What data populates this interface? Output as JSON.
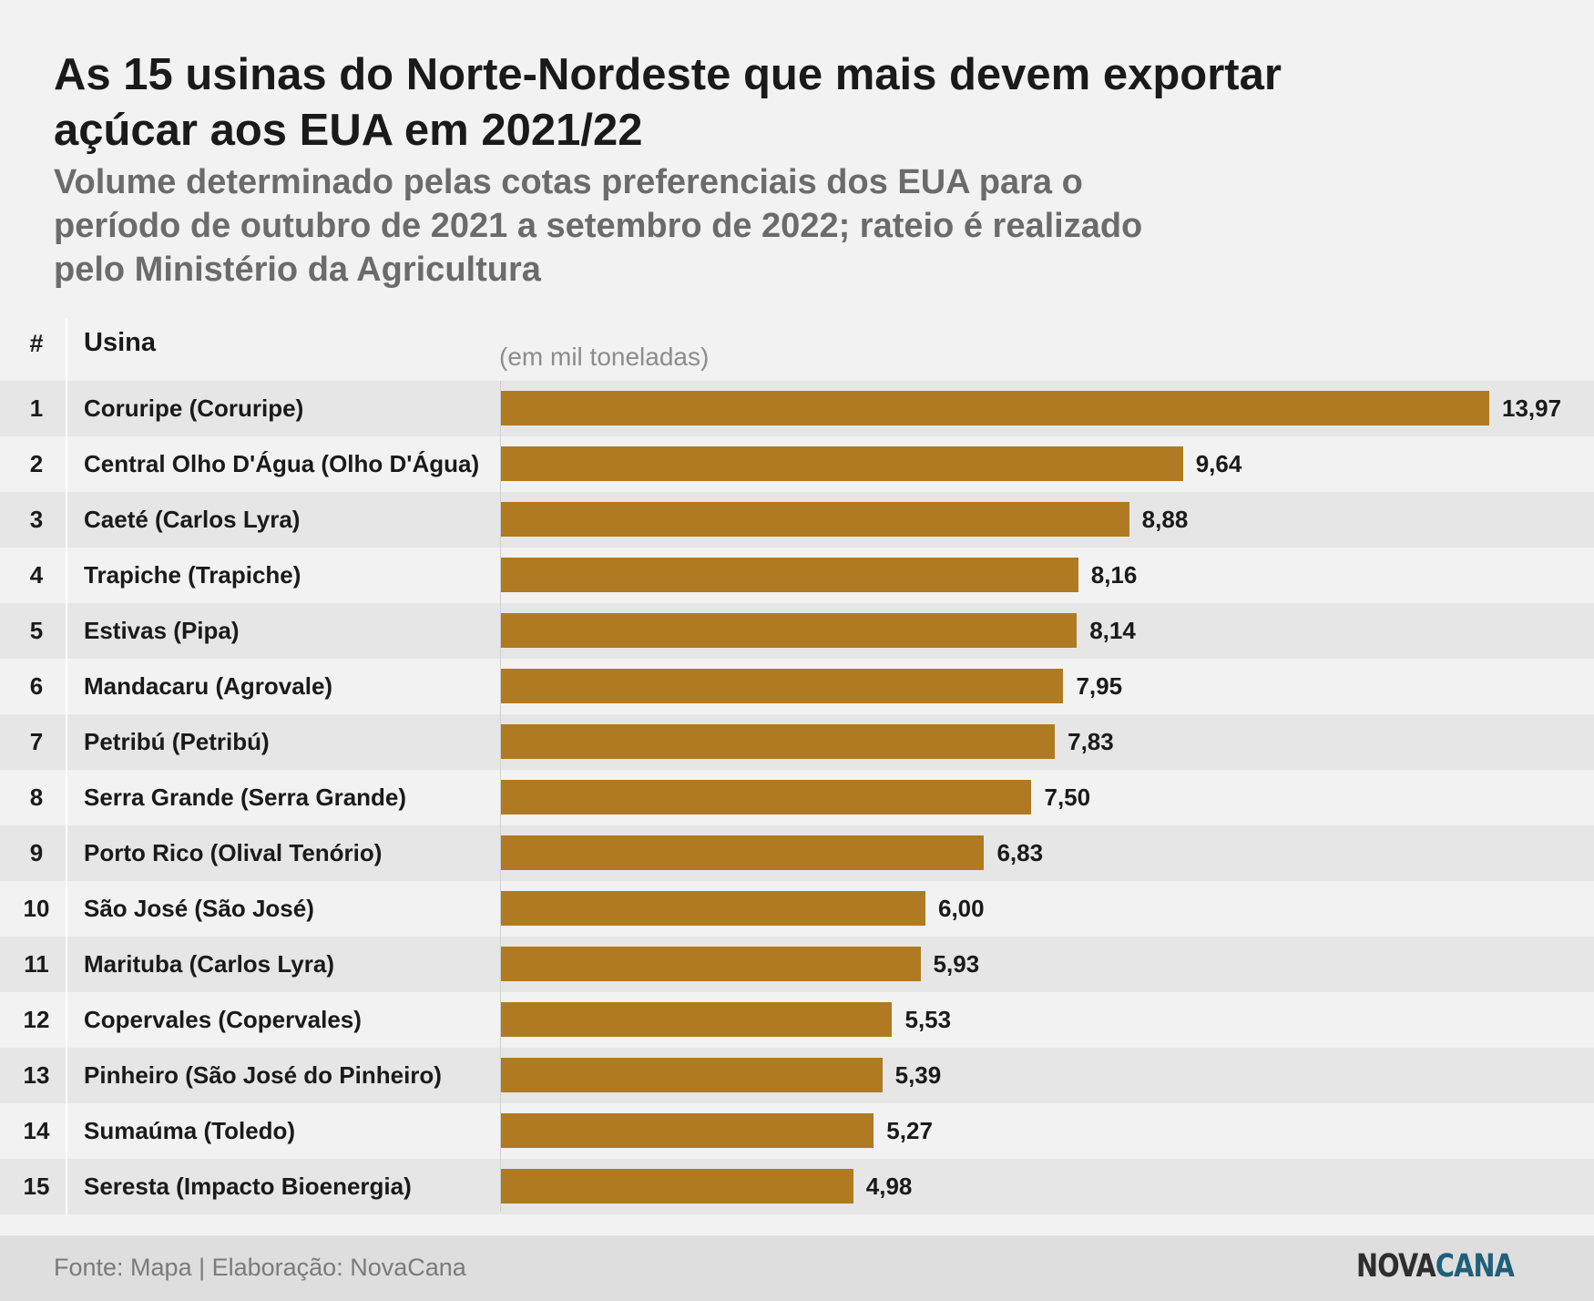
{
  "title": "As 15 usinas do Norte-Nordeste que mais devem exportar açúcar aos EUA em 2021/22",
  "subtitle": "Volume determinado pelas cotas preferenciais dos EUA para o período de outubro de 2021 a setembro de 2022; rateio é realizado pelo Ministério da Agricultura",
  "columns": {
    "rank": "#",
    "name": "Usina"
  },
  "source": "Fonte: Mapa | Elaboração: NovaCana",
  "logo": {
    "part1": "NOVA",
    "part2": "CANA"
  },
  "colors": {
    "bar": "#b07a22",
    "stripe": "#e6e6e6",
    "background": "#f2f2f2",
    "logo_accent": "#1f5f7a"
  },
  "chart_data": {
    "type": "bar",
    "orientation": "horizontal",
    "unit_label": "(em mil toneladas)",
    "grid": false,
    "legend": "none",
    "xlim": [
      0,
      13.97
    ],
    "ranks": [
      "1",
      "2",
      "3",
      "4",
      "5",
      "6",
      "7",
      "8",
      "9",
      "10",
      "11",
      "12",
      "13",
      "14",
      "15"
    ],
    "categories": [
      "Coruripe (Coruripe)",
      "Central Olho D'Água (Olho D'Água)",
      "Caeté (Carlos Lyra)",
      "Trapiche (Trapiche)",
      "Estivas (Pipa)",
      "Mandacaru (Agrovale)",
      "Petribú (Petribú)",
      "Serra Grande (Serra Grande)",
      "Porto Rico (Olival Tenório)",
      "São José (São José)",
      "Marituba (Carlos Lyra)",
      "Copervales (Copervales)",
      "Pinheiro (São José do Pinheiro)",
      "Sumaúma (Toledo)",
      "Seresta (Impacto Bioenergia)"
    ],
    "values": [
      13.97,
      9.64,
      8.88,
      8.16,
      8.14,
      7.95,
      7.83,
      7.5,
      6.83,
      6.0,
      5.93,
      5.53,
      5.39,
      5.27,
      4.98
    ],
    "value_labels": [
      "13,97",
      "9,64",
      "8,88",
      "8,16",
      "8,14",
      "7,95",
      "7,83",
      "7,50",
      "6,83",
      "6,00",
      "5,93",
      "5,53",
      "5,39",
      "5,27",
      "4,98"
    ]
  }
}
